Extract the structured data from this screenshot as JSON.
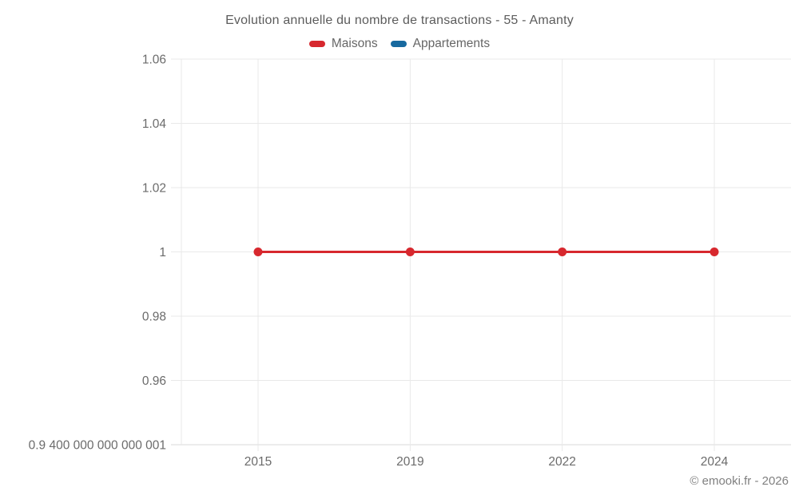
{
  "chart": {
    "title": "Evolution annuelle du nombre de transactions - 55 - Amanty"
  },
  "legend": {
    "items": [
      {
        "label": "Maisons",
        "color": "#d7282e"
      },
      {
        "label": "Appartements",
        "color": "#17699f"
      }
    ]
  },
  "footer": {
    "copyright": "© emooki.fr - 2026"
  },
  "chart_data": {
    "type": "line",
    "title": "Evolution annuelle du nombre de transactions - 55 - Amanty",
    "categories": [
      "2015",
      "2019",
      "2022",
      "2024"
    ],
    "series": [
      {
        "name": "Maisons",
        "color": "#d7282e",
        "values": [
          1,
          1,
          1,
          1
        ]
      },
      {
        "name": "Appartements",
        "color": "#17699f",
        "values": []
      }
    ],
    "yticks": [
      {
        "value": 1.06,
        "label": "1.06"
      },
      {
        "value": 1.04,
        "label": "1.04"
      },
      {
        "value": 1.02,
        "label": "1.02"
      },
      {
        "value": 1.0,
        "label": "1"
      },
      {
        "value": 0.98,
        "label": "0.98"
      },
      {
        "value": 0.96,
        "label": "0.96"
      },
      {
        "value": 0.9400000000000001,
        "label": "0.9 400 000 000 000 001"
      }
    ],
    "ylim": [
      0.9400000000000001,
      1.06
    ],
    "grid": true,
    "legend_position": "top",
    "theme": {
      "grid_color": "#e9e9e9",
      "axis_line_color": "#d9d9d9",
      "tick_text_color": "#6b6b6b"
    }
  }
}
